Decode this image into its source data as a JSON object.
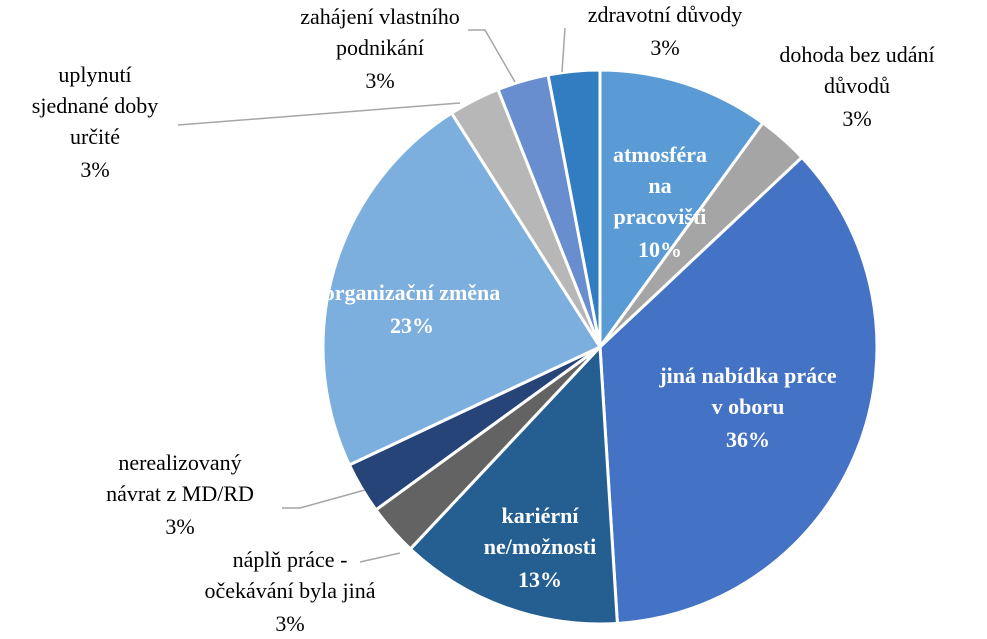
{
  "chart_data": {
    "type": "pie",
    "categories": [
      "atmosféra\nna\npracovišti",
      "dohoda bez udání\ndůvodů",
      "jiná nabídka práce\nv oboru",
      "kariérní\nne/možnosti",
      "náplň práce -\nočekávání byla jiná",
      "nerealizovaný\nnávrat z MD/RD",
      "organizační změna",
      "uplynutí\nsjednané doby\nurčité",
      "zahájení vlastního\npodnikání",
      "zdravotní důvody"
    ],
    "values": [
      10,
      3,
      36,
      13,
      3,
      3,
      23,
      3,
      3,
      3
    ],
    "value_labels": [
      "10%",
      "3%",
      "36%",
      "13%",
      "3%",
      "3%",
      "23%",
      "3%",
      "3%",
      "3%"
    ],
    "colors": [
      "#5b9bd5",
      "#a5a5a5",
      "#4472c4",
      "#255e91",
      "#636363",
      "#264478",
      "#7cafdd",
      "#b7b7b7",
      "#698ed0",
      "#327dc2"
    ]
  }
}
